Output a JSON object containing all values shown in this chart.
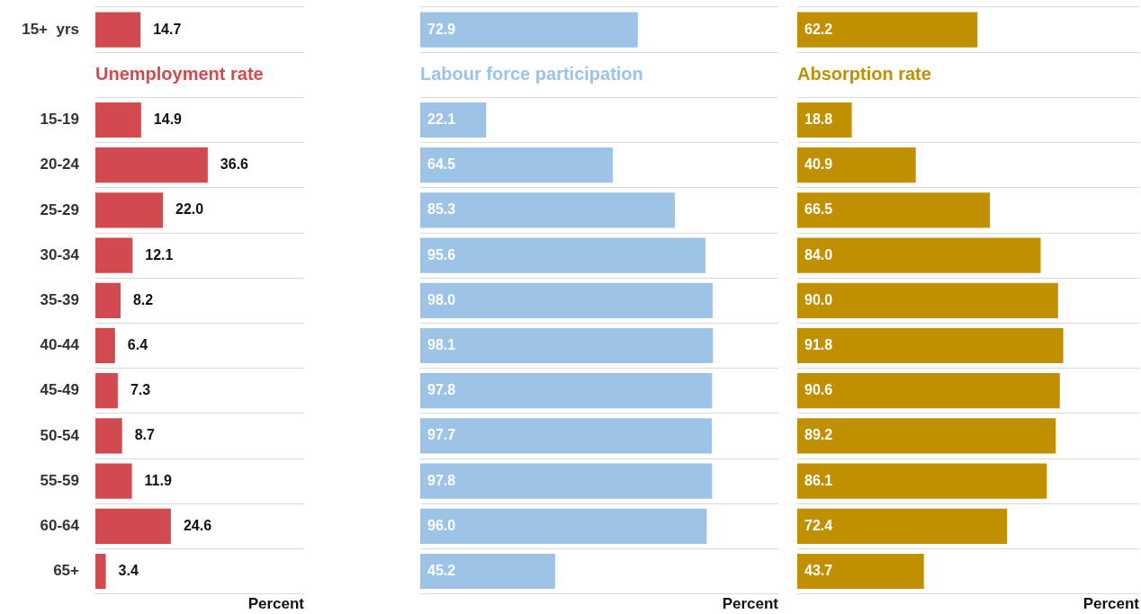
{
  "chart_data": [
    {
      "type": "bar",
      "orientation": "horizontal",
      "title": "Unemployment rate",
      "xlabel": "Percent",
      "categories": [
        "15+  yrs",
        null,
        "15-19",
        "20-24",
        "25-29",
        "30-34",
        "35-39",
        "40-44",
        "45-49",
        "50-54",
        "55-59",
        "60-64",
        "65+"
      ],
      "values": [
        14.7,
        null,
        14.9,
        36.6,
        22.0,
        12.1,
        8.2,
        6.4,
        7.3,
        8.7,
        11.9,
        24.6,
        3.4
      ],
      "value_labels": [
        "14.7",
        null,
        "14.9",
        "36.6",
        "22.0",
        "12.1",
        "8.2",
        "6.4",
        "7.3",
        "8.7",
        "11.9",
        "24.6",
        "3.4"
      ],
      "color": "#d04a4f",
      "xlim": [
        0,
        68
      ],
      "grid": "y",
      "tick_labels": "y"
    },
    {
      "type": "bar",
      "orientation": "horizontal",
      "title": "Labour force participation",
      "xlabel": "Percent",
      "categories": [
        null,
        null,
        null,
        null,
        null,
        null,
        null,
        null,
        null,
        null,
        null,
        null,
        null
      ],
      "values": [
        72.9,
        null,
        22.1,
        64.5,
        85.3,
        95.6,
        98.0,
        98.1,
        97.8,
        97.7,
        97.8,
        96.0,
        45.2
      ],
      "value_labels": [
        "72.9",
        null,
        "22.1",
        "64.5",
        "85.3",
        "95.6",
        "98.0",
        "98.1",
        "97.8",
        "97.7",
        "97.8",
        "96.0",
        "45.2"
      ],
      "color": "#9dc3e6",
      "xlim": [
        0,
        120
      ],
      "grid": "y",
      "tick_labels": false
    },
    {
      "type": "bar",
      "orientation": "horizontal",
      "title": "Absorption rate",
      "xlabel": "Percent",
      "categories": [
        null,
        null,
        null,
        null,
        null,
        null,
        null,
        null,
        null,
        null,
        null,
        null,
        null
      ],
      "values": [
        62.2,
        null,
        18.8,
        40.9,
        66.5,
        84.0,
        90.0,
        91.8,
        90.6,
        89.2,
        86.1,
        72.4,
        43.7
      ],
      "value_labels": [
        "62.2",
        null,
        "18.8",
        "40.9",
        "66.5",
        "84.0",
        "90.0",
        "91.8",
        "90.6",
        "89.2",
        "86.1",
        "72.4",
        "43.7"
      ],
      "color": "#c09000",
      "xlim": [
        0,
        118
      ],
      "grid": "y",
      "tick_labels": false
    }
  ]
}
